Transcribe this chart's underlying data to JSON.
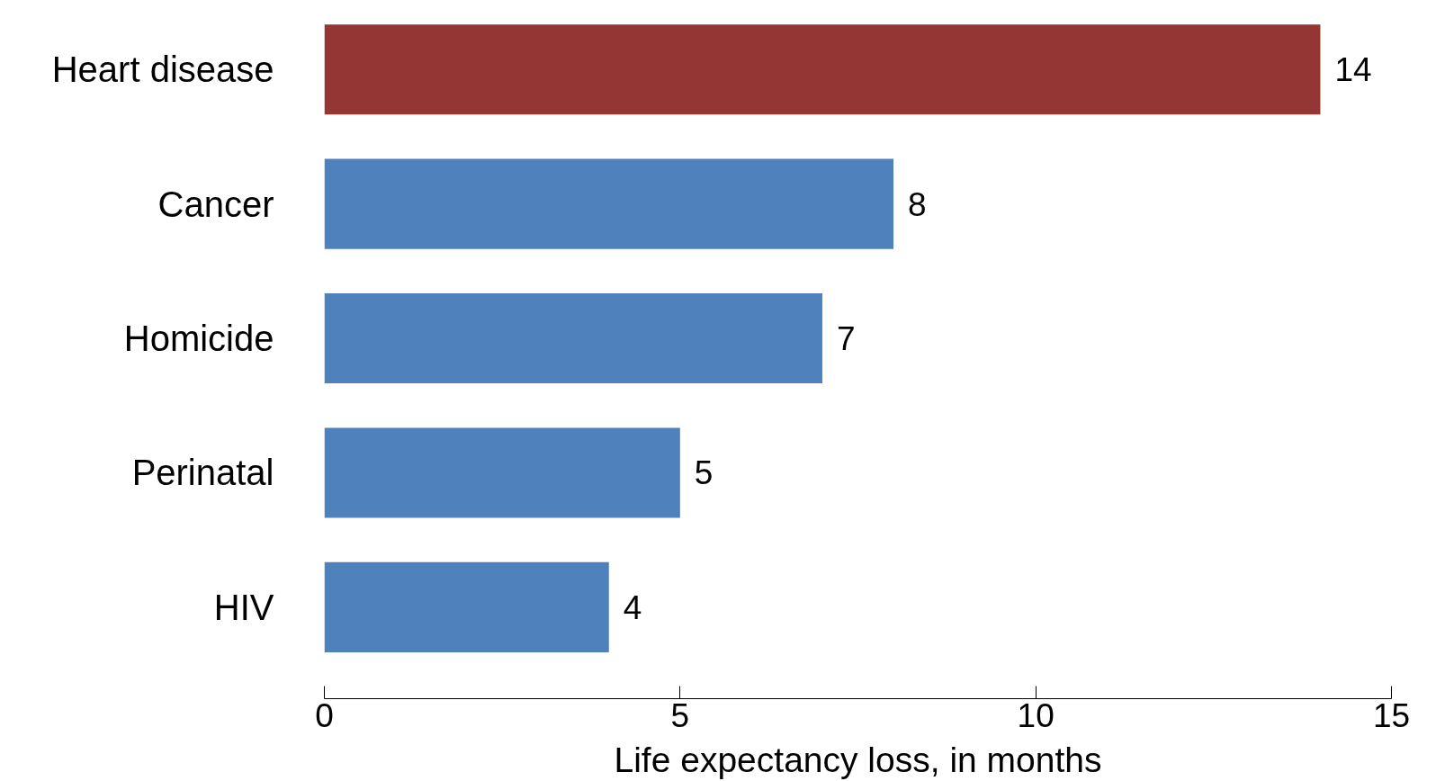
{
  "chart_data": {
    "type": "bar",
    "orientation": "horizontal",
    "xlabel": "Life expectancy loss, in months",
    "categories": [
      "Heart disease",
      "Cancer",
      "Homicide",
      "Perinatal",
      "HIV"
    ],
    "values": [
      14,
      8,
      7,
      5,
      4
    ],
    "colors": [
      "#943634",
      "#4f81bd",
      "#4f81bd",
      "#4f81bd",
      "#4f81bd"
    ],
    "xlim": [
      0,
      15
    ],
    "xticks": [
      0,
      5,
      10,
      15
    ],
    "data_labels": true,
    "grid": false
  }
}
